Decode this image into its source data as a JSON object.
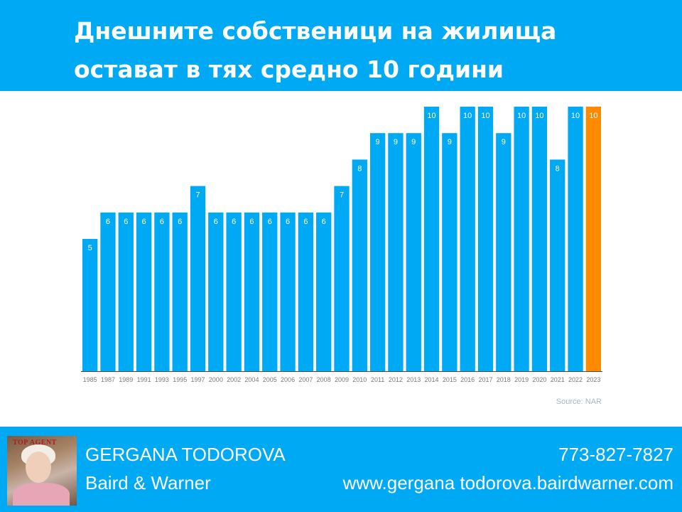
{
  "header": {
    "title_line1": "Днешните собственици на жилища",
    "title_line2": "остават в тях средно 10 години"
  },
  "chart_data": {
    "type": "bar",
    "categories": [
      "1985",
      "1987",
      "1989",
      "1991",
      "1993",
      "1995",
      "1997",
      "2000",
      "2002",
      "2004",
      "2005",
      "2006",
      "2007",
      "2008",
      "2009",
      "2010",
      "2011",
      "2012",
      "2013",
      "2014",
      "2015",
      "2016",
      "2017",
      "2018",
      "2019",
      "2020",
      "2021",
      "2022",
      "2023"
    ],
    "values": [
      5,
      6,
      6,
      6,
      6,
      6,
      7,
      6,
      6,
      6,
      6,
      6,
      6,
      6,
      7,
      8,
      9,
      9,
      9,
      10,
      9,
      10,
      10,
      9,
      10,
      10,
      8,
      10,
      10
    ],
    "data_labels": true,
    "highlight_category": "2023",
    "ylim": [
      0,
      10
    ],
    "grid": false,
    "source": "Source: NAR"
  },
  "colors": {
    "header_bg": "#00A9F4",
    "bar": "#00A9F4",
    "bar_highlight": "#FF8A00",
    "axis_label": "#7a7a7a",
    "source_text": "#a8b8c4"
  },
  "footer": {
    "photo_badge": "TOP AGENT",
    "name": "GERGANA TODOROVA",
    "company": "Baird & Warner",
    "phone": "773-827-7827",
    "website": "www.gergana todorova.bairdwarner.com"
  }
}
